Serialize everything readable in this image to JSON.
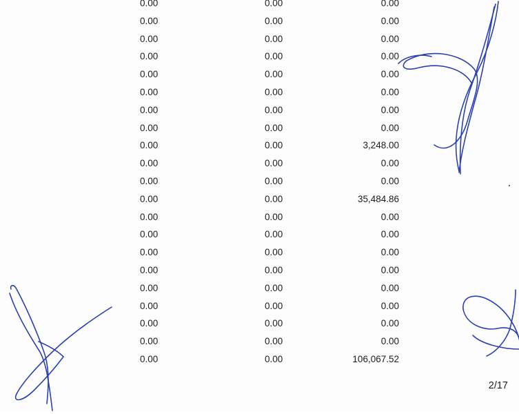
{
  "table": {
    "rows": [
      [
        "0.00",
        "0.00",
        "0.00"
      ],
      [
        "0.00",
        "0.00",
        "0.00"
      ],
      [
        "0.00",
        "0.00",
        "0.00"
      ],
      [
        "0.00",
        "0.00",
        "0.00"
      ],
      [
        "0.00",
        "0.00",
        "0.00"
      ],
      [
        "0.00",
        "0.00",
        "0.00"
      ],
      [
        "0.00",
        "0.00",
        "0.00"
      ],
      [
        "0.00",
        "0.00",
        "0.00"
      ],
      [
        "0.00",
        "0.00",
        "3,248.00"
      ],
      [
        "0.00",
        "0.00",
        "0.00"
      ],
      [
        "0.00",
        "0.00",
        "0.00"
      ],
      [
        "0.00",
        "0.00",
        "35,484.86"
      ],
      [
        "0.00",
        "0.00",
        "0.00"
      ],
      [
        "0.00",
        "0.00",
        "0.00"
      ],
      [
        "0.00",
        "0.00",
        "0.00"
      ],
      [
        "0.00",
        "0.00",
        "0.00"
      ],
      [
        "0.00",
        "0.00",
        "0.00"
      ],
      [
        "0.00",
        "0.00",
        "0.00"
      ],
      [
        "0.00",
        "0.00",
        "0.00"
      ],
      [
        "0.00",
        "0.00",
        "0.00"
      ],
      [
        "0.00",
        "0.00",
        "106,067.52"
      ]
    ]
  },
  "footer": {
    "page_number": "2/17"
  },
  "signature_color": "#2b3fb3"
}
